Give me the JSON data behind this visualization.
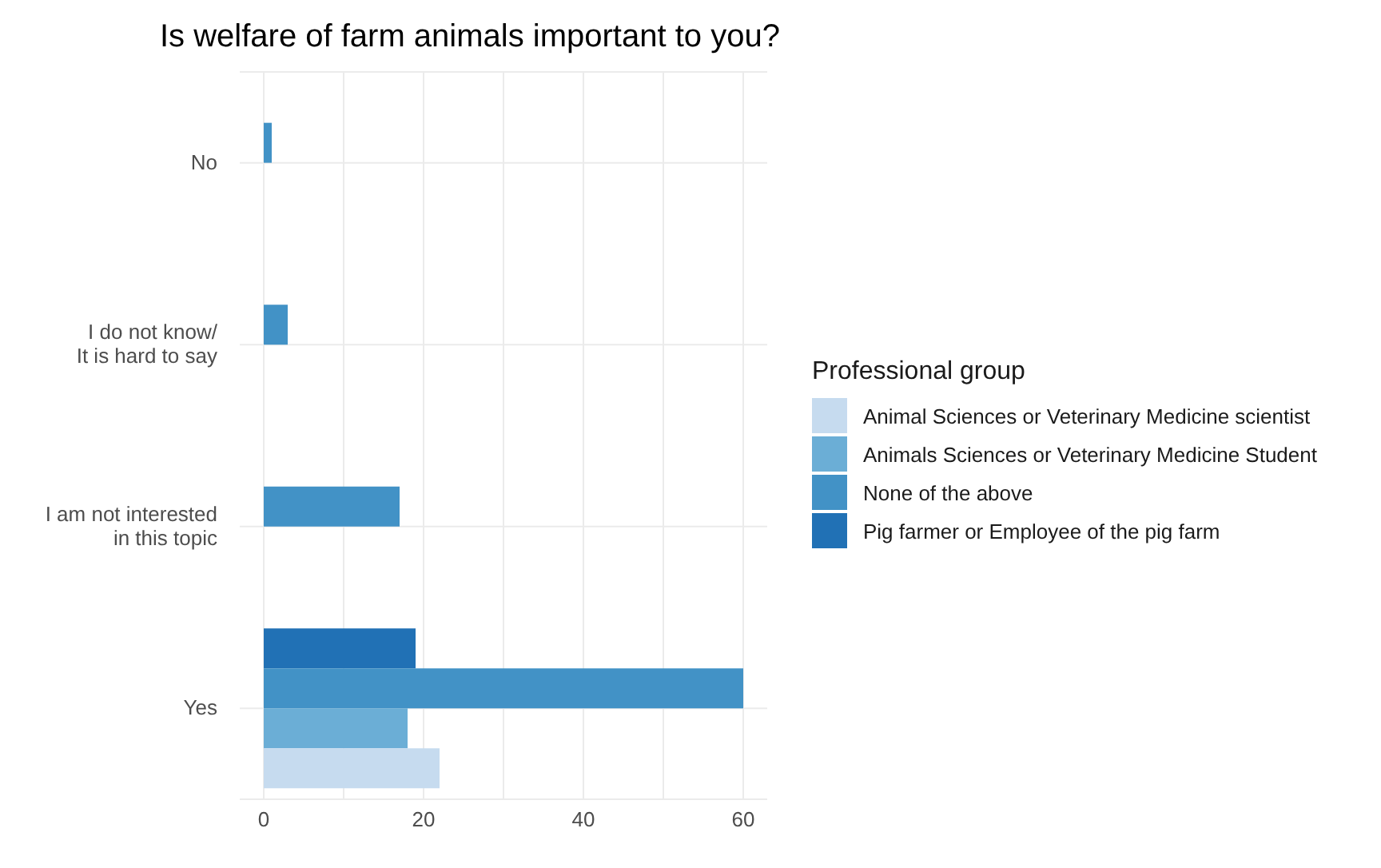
{
  "chart_data": {
    "type": "bar",
    "orientation": "horizontal",
    "title": "Is welfare of farm animals important to you?",
    "categories": [
      "No",
      "I do not know/\nIt is hard to say",
      "I am not interested\nin this topic",
      "Yes"
    ],
    "series": [
      {
        "name": "Animal Sciences or Veterinary Medicine scientist",
        "color": "#c6dbef",
        "values": [
          null,
          null,
          null,
          22
        ]
      },
      {
        "name": "Animals Sciences or Veterinary Medicine Student",
        "color": "#6baed6",
        "values": [
          null,
          null,
          null,
          18
        ]
      },
      {
        "name": "None of the above",
        "color": "#4292c6",
        "values": [
          1,
          3,
          17,
          60
        ]
      },
      {
        "name": "Pig farmer or Employee of the pig farm",
        "color": "#2171b5",
        "values": [
          null,
          null,
          null,
          19
        ]
      }
    ],
    "legend_title": "Professional group",
    "legend": "right",
    "grid": true,
    "xlim": [
      -3,
      63
    ],
    "xticks": [
      0,
      20,
      40,
      60
    ]
  }
}
